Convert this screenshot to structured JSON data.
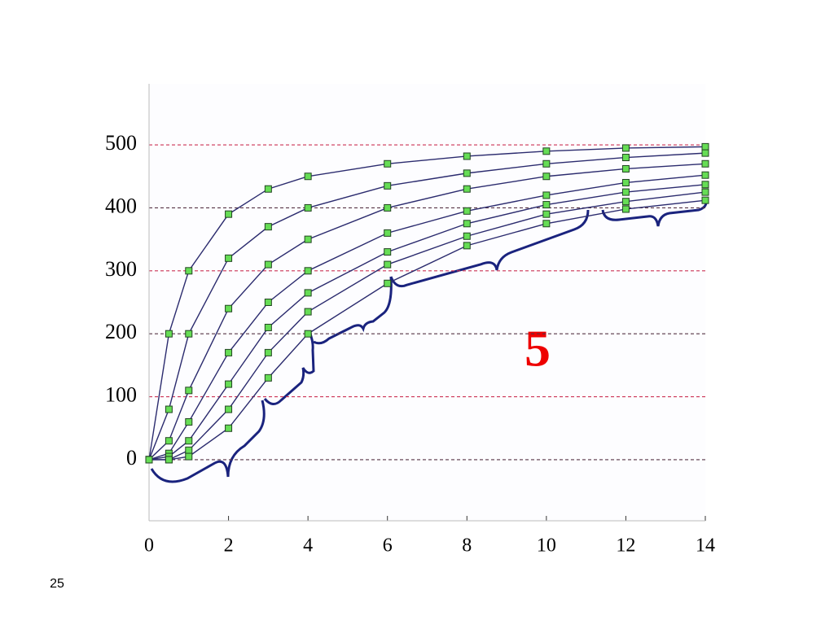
{
  "chart_data": {
    "type": "line",
    "x": [
      0,
      0.5,
      1,
      2,
      3,
      4,
      6,
      8,
      10,
      12,
      14
    ],
    "series": [
      {
        "color": "#2b2b6e",
        "values": [
          0,
          200,
          300,
          390,
          430,
          450,
          470,
          482,
          490,
          495,
          497
        ]
      },
      {
        "color": "#2b2b6e",
        "values": [
          0,
          80,
          200,
          320,
          370,
          400,
          435,
          455,
          470,
          480,
          487
        ]
      },
      {
        "color": "#2b2b6e",
        "values": [
          0,
          30,
          110,
          240,
          310,
          350,
          400,
          430,
          450,
          462,
          470
        ]
      },
      {
        "color": "#2b2b6e",
        "values": [
          0,
          10,
          60,
          170,
          250,
          300,
          360,
          395,
          420,
          440,
          452
        ]
      },
      {
        "color": "#2b2b6e",
        "values": [
          0,
          5,
          30,
          120,
          210,
          265,
          330,
          375,
          405,
          425,
          437
        ]
      },
      {
        "color": "#2b2b6e",
        "values": [
          0,
          0,
          15,
          80,
          170,
          235,
          310,
          355,
          390,
          410,
          425
        ]
      },
      {
        "color": "#2b2b6e",
        "values": [
          0,
          0,
          5,
          50,
          130,
          200,
          280,
          340,
          375,
          398,
          412
        ]
      }
    ],
    "marker_color": "#66dd55",
    "xlim": [
      0,
      14
    ],
    "xticks": [
      0,
      2,
      4,
      6,
      8,
      10,
      12,
      14
    ],
    "ylim": [
      -97,
      597
    ],
    "yticks": [
      0,
      100,
      200,
      300,
      400,
      500
    ],
    "grid": true,
    "annotation": "5",
    "slide_number": "25"
  }
}
